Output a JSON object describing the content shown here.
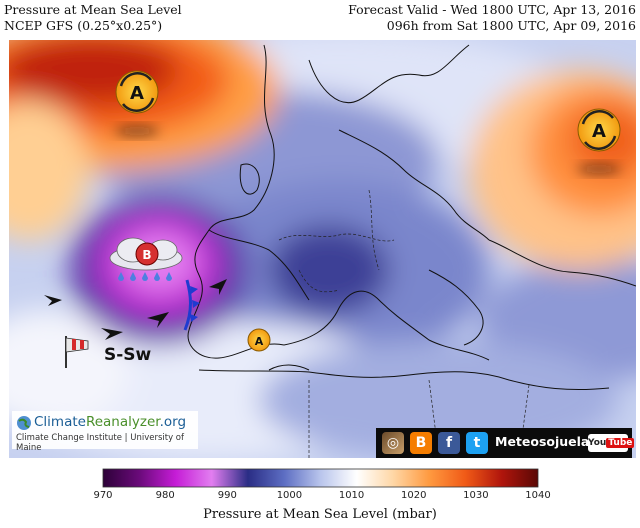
{
  "header": {
    "title": "Pressure at Mean Sea Level",
    "model": "NCEP GFS (0.25°x0.25°)",
    "valid": "Forecast Valid - Wed 1800 UTC, Apr 13, 2016",
    "run": "096h from Sat 1800 UTC, Apr 09, 2016"
  },
  "legend": {
    "title": "Pressure at Mean Sea Level (mbar)",
    "ticks": [
      "970",
      "980",
      "990",
      "1000",
      "1010",
      "1020",
      "1030",
      "1040"
    ],
    "colors": [
      "#2d0138",
      "#6a0a7a",
      "#c51cd6",
      "#e27ef0",
      "#2a2d85",
      "#5d6ec3",
      "#b9c5ec",
      "#ffffff",
      "#ffd7a6",
      "#ff9a40",
      "#f05a17",
      "#b0150c",
      "#5a0805"
    ]
  },
  "overlay": {
    "high_label": "A",
    "low_label": "B",
    "wind_label": "S-Sw"
  },
  "credit": {
    "brand_a": "Climate",
    "brand_b": "Reanalyzer",
    "brand_c": ".org",
    "line2": "Climate Change Institute | University of Maine"
  },
  "social": {
    "name": "Meteosojuela",
    "youtube_a": "You",
    "youtube_b": "Tube",
    "icons": [
      "instagram-icon",
      "blogger-icon",
      "facebook-icon",
      "twitter-icon"
    ]
  }
}
